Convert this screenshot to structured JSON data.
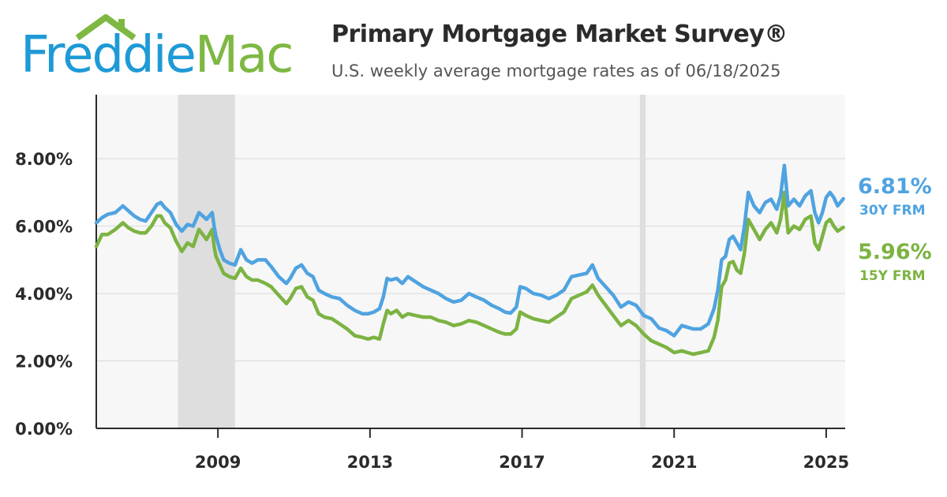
{
  "logo": {
    "part1": "Freddie",
    "part2": "Mac"
  },
  "header": {
    "title": "Primary Mortgage Market Survey®",
    "subtitle": "U.S. weekly average mortgage rates as of 06/18/2025"
  },
  "colors": {
    "rate_30y": "#4fa3e0",
    "rate_15y": "#7cb342",
    "recession_band": "#dedede",
    "plot_bg": "#f7f7f7"
  },
  "chart_data": {
    "type": "line",
    "title": "Primary Mortgage Market Survey®",
    "subtitle": "U.S. weekly average mortgage rates as of 06/18/2025",
    "xlabel": "",
    "ylabel": "",
    "x_ticks": [
      2009,
      2013,
      2017,
      2021,
      2025
    ],
    "y_ticks": [
      "0.00%",
      "2.00%",
      "4.00%",
      "6.00%",
      "8.00%"
    ],
    "y_tick_values": [
      0,
      2,
      4,
      6,
      8
    ],
    "xlim": [
      2005.8,
      2025.5
    ],
    "ylim": [
      0,
      9.9
    ],
    "grid": "horizontal",
    "shaded_periods": [
      {
        "from": 2007.95,
        "to": 2009.45
      },
      {
        "from": 2020.1,
        "to": 2020.25
      }
    ],
    "end_labels": [
      {
        "value": "6.81%",
        "label": "30Y FRM",
        "series": "30Y FRM"
      },
      {
        "value": "5.96%",
        "label": "15Y FRM",
        "series": "15Y FRM"
      }
    ],
    "series": [
      {
        "name": "30Y FRM",
        "color": "#4fa3e0",
        "x": [
          2005.8,
          2005.95,
          2006.1,
          2006.3,
          2006.5,
          2006.65,
          2006.8,
          2006.95,
          2007.1,
          2007.25,
          2007.4,
          2007.5,
          2007.6,
          2007.75,
          2007.9,
          2008.05,
          2008.2,
          2008.35,
          2008.5,
          2008.7,
          2008.85,
          2008.9,
          2008.95,
          2009.05,
          2009.15,
          2009.3,
          2009.45,
          2009.6,
          2009.75,
          2009.9,
          2010.05,
          2010.25,
          2010.4,
          2010.6,
          2010.8,
          2010.9,
          2011.05,
          2011.2,
          2011.35,
          2011.5,
          2011.65,
          2011.8,
          2012.0,
          2012.2,
          2012.4,
          2012.6,
          2012.8,
          2012.95,
          2013.1,
          2013.25,
          2013.35,
          2013.45,
          2013.55,
          2013.7,
          2013.85,
          2014.0,
          2014.2,
          2014.4,
          2014.6,
          2014.8,
          2015.0,
          2015.2,
          2015.4,
          2015.6,
          2015.8,
          2016.0,
          2016.2,
          2016.4,
          2016.55,
          2016.7,
          2016.85,
          2016.95,
          2017.1,
          2017.3,
          2017.5,
          2017.7,
          2017.9,
          2018.1,
          2018.3,
          2018.5,
          2018.7,
          2018.85,
          2019.0,
          2019.2,
          2019.4,
          2019.6,
          2019.8,
          2020.0,
          2020.2,
          2020.4,
          2020.6,
          2020.8,
          2021.0,
          2021.2,
          2021.35,
          2021.5,
          2021.7,
          2021.9,
          2022.05,
          2022.15,
          2022.25,
          2022.35,
          2022.45,
          2022.55,
          2022.65,
          2022.75,
          2022.85,
          2022.95,
          2023.1,
          2023.25,
          2023.4,
          2023.55,
          2023.7,
          2023.8,
          2023.9,
          2024.0,
          2024.15,
          2024.3,
          2024.45,
          2024.6,
          2024.7,
          2024.8,
          2024.9,
          2025.0,
          2025.1,
          2025.2,
          2025.3,
          2025.45
        ],
        "y": [
          6.1,
          6.25,
          6.35,
          6.4,
          6.6,
          6.45,
          6.3,
          6.2,
          6.15,
          6.4,
          6.65,
          6.7,
          6.55,
          6.4,
          6.05,
          5.85,
          6.05,
          6.0,
          6.4,
          6.2,
          6.4,
          6.0,
          5.7,
          5.3,
          5.0,
          4.9,
          4.85,
          5.3,
          5.0,
          4.9,
          5.0,
          5.0,
          4.8,
          4.5,
          4.3,
          4.45,
          4.75,
          4.85,
          4.6,
          4.5,
          4.1,
          4.0,
          3.9,
          3.85,
          3.65,
          3.5,
          3.4,
          3.4,
          3.45,
          3.55,
          3.9,
          4.45,
          4.4,
          4.45,
          4.3,
          4.5,
          4.35,
          4.2,
          4.1,
          4.0,
          3.85,
          3.75,
          3.8,
          4.0,
          3.9,
          3.8,
          3.65,
          3.55,
          3.45,
          3.42,
          3.6,
          4.2,
          4.15,
          4.0,
          3.95,
          3.85,
          3.95,
          4.1,
          4.5,
          4.55,
          4.6,
          4.85,
          4.45,
          4.2,
          3.95,
          3.6,
          3.75,
          3.65,
          3.35,
          3.25,
          2.98,
          2.9,
          2.75,
          3.05,
          3.0,
          2.95,
          2.95,
          3.1,
          3.55,
          4.1,
          5.0,
          5.1,
          5.6,
          5.7,
          5.5,
          5.3,
          6.0,
          7.0,
          6.6,
          6.4,
          6.7,
          6.8,
          6.5,
          6.9,
          7.8,
          6.6,
          6.8,
          6.6,
          6.9,
          7.05,
          6.4,
          6.1,
          6.4,
          6.85,
          7.0,
          6.85,
          6.6,
          6.81
        ]
      },
      {
        "name": "15Y FRM",
        "color": "#7cb342",
        "x": [
          2005.8,
          2005.95,
          2006.1,
          2006.3,
          2006.5,
          2006.65,
          2006.8,
          2006.95,
          2007.1,
          2007.25,
          2007.4,
          2007.5,
          2007.6,
          2007.75,
          2007.9,
          2008.05,
          2008.2,
          2008.35,
          2008.5,
          2008.7,
          2008.85,
          2008.9,
          2008.95,
          2009.05,
          2009.15,
          2009.3,
          2009.45,
          2009.6,
          2009.75,
          2009.9,
          2010.05,
          2010.25,
          2010.4,
          2010.6,
          2010.8,
          2010.9,
          2011.05,
          2011.2,
          2011.35,
          2011.5,
          2011.65,
          2011.8,
          2012.0,
          2012.2,
          2012.4,
          2012.6,
          2012.8,
          2012.95,
          2013.1,
          2013.25,
          2013.35,
          2013.45,
          2013.55,
          2013.7,
          2013.85,
          2014.0,
          2014.2,
          2014.4,
          2014.6,
          2014.8,
          2015.0,
          2015.2,
          2015.4,
          2015.6,
          2015.8,
          2016.0,
          2016.2,
          2016.4,
          2016.55,
          2016.7,
          2016.85,
          2016.95,
          2017.1,
          2017.3,
          2017.5,
          2017.7,
          2017.9,
          2018.1,
          2018.3,
          2018.5,
          2018.7,
          2018.85,
          2019.0,
          2019.2,
          2019.4,
          2019.6,
          2019.8,
          2020.0,
          2020.2,
          2020.4,
          2020.6,
          2020.8,
          2021.0,
          2021.2,
          2021.35,
          2021.5,
          2021.7,
          2021.9,
          2022.05,
          2022.15,
          2022.25,
          2022.35,
          2022.45,
          2022.55,
          2022.65,
          2022.75,
          2022.85,
          2022.95,
          2023.1,
          2023.25,
          2023.4,
          2023.55,
          2023.7,
          2023.8,
          2023.9,
          2024.0,
          2024.15,
          2024.3,
          2024.45,
          2024.6,
          2024.7,
          2024.8,
          2024.9,
          2025.0,
          2025.1,
          2025.2,
          2025.3,
          2025.45
        ],
        "y": [
          5.4,
          5.75,
          5.75,
          5.9,
          6.1,
          5.95,
          5.85,
          5.8,
          5.8,
          6.0,
          6.3,
          6.3,
          6.1,
          5.95,
          5.55,
          5.25,
          5.5,
          5.4,
          5.9,
          5.6,
          5.9,
          5.4,
          5.1,
          4.85,
          4.6,
          4.5,
          4.45,
          4.75,
          4.5,
          4.4,
          4.4,
          4.3,
          4.2,
          3.95,
          3.7,
          3.85,
          4.15,
          4.2,
          3.9,
          3.8,
          3.4,
          3.3,
          3.25,
          3.1,
          2.95,
          2.75,
          2.7,
          2.65,
          2.7,
          2.65,
          3.1,
          3.5,
          3.4,
          3.5,
          3.3,
          3.4,
          3.35,
          3.3,
          3.3,
          3.2,
          3.15,
          3.05,
          3.1,
          3.2,
          3.15,
          3.05,
          2.95,
          2.85,
          2.8,
          2.8,
          2.95,
          3.45,
          3.35,
          3.25,
          3.2,
          3.15,
          3.3,
          3.45,
          3.85,
          3.95,
          4.05,
          4.25,
          3.95,
          3.65,
          3.35,
          3.05,
          3.2,
          3.05,
          2.8,
          2.6,
          2.5,
          2.4,
          2.25,
          2.3,
          2.25,
          2.2,
          2.25,
          2.3,
          2.7,
          3.2,
          4.2,
          4.4,
          4.9,
          4.95,
          4.7,
          4.6,
          5.2,
          6.2,
          5.9,
          5.6,
          5.9,
          6.1,
          5.8,
          6.2,
          7.0,
          5.8,
          6.0,
          5.9,
          6.2,
          6.3,
          5.5,
          5.3,
          5.7,
          6.1,
          6.2,
          6.0,
          5.85,
          5.96
        ]
      }
    ]
  }
}
